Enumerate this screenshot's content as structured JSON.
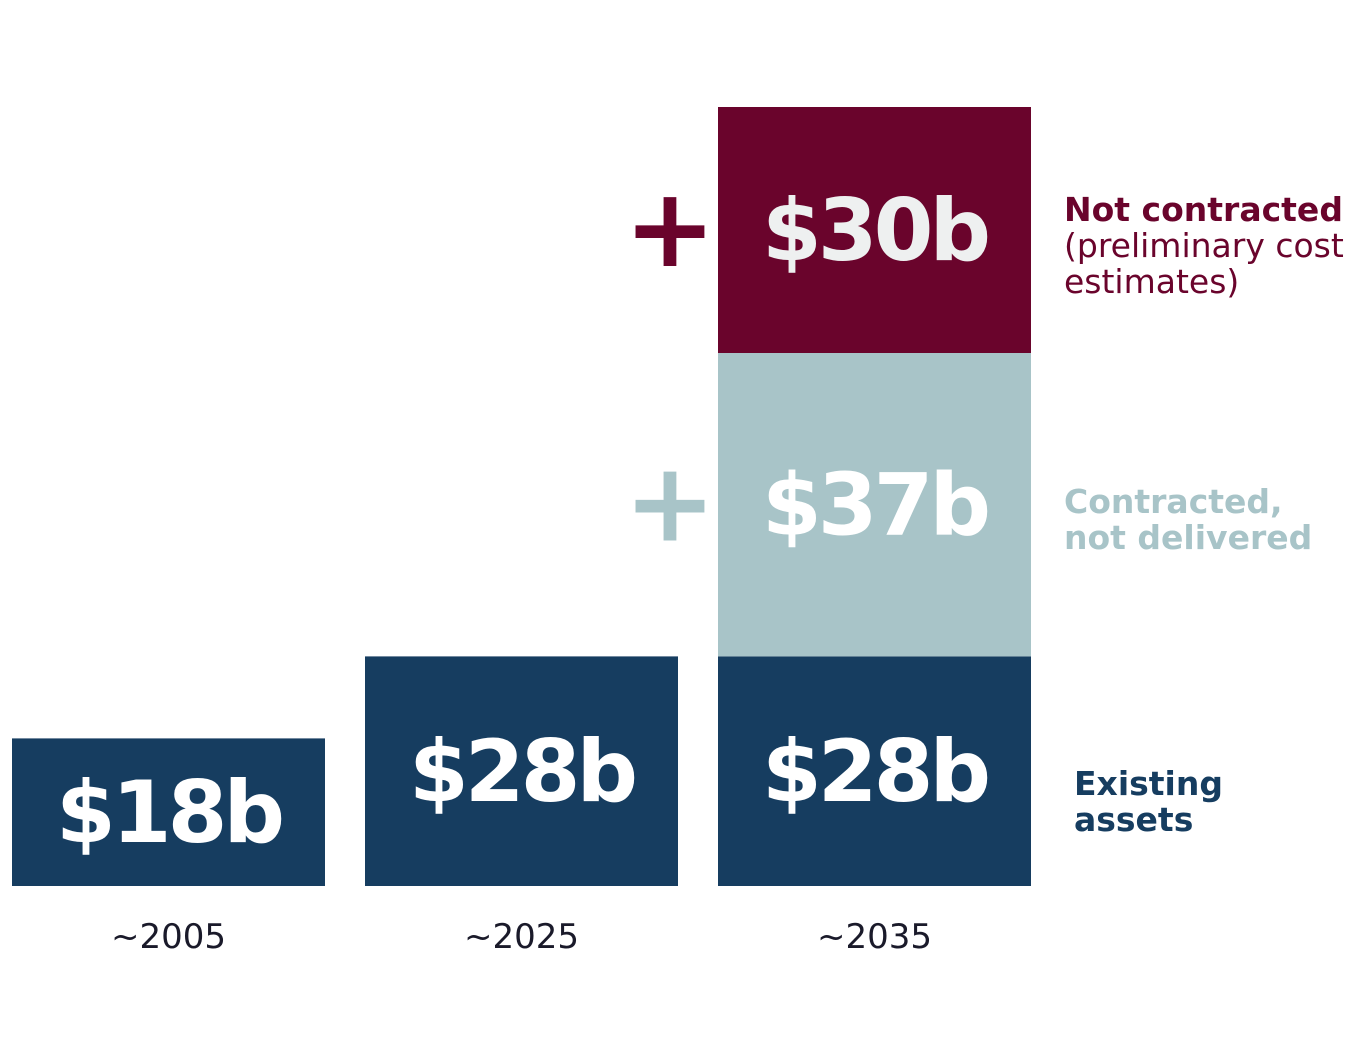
{
  "chart_data": {
    "type": "bar",
    "stacked": true,
    "categories": [
      "~2005",
      "~2025",
      "~2035"
    ],
    "series": [
      {
        "name": "Existing assets",
        "values": [
          18,
          28,
          28
        ],
        "labels": [
          "$18b",
          "$28b",
          "$28b"
        ],
        "color": "#163d60"
      },
      {
        "name": "Contracted, not delivered",
        "values": [
          0,
          0,
          37
        ],
        "labels": [
          "",
          "",
          "$37b"
        ],
        "color": "#a8c4c8"
      },
      {
        "name": "Not contracted",
        "subname": "(preliminary cost estimates)",
        "values": [
          0,
          0,
          30
        ],
        "labels": [
          "",
          "",
          "$30b"
        ],
        "color": "#6a042c"
      }
    ],
    "plus_sign": "+",
    "axis_color": "#1a1a2a",
    "grid": false,
    "legend": "right"
  }
}
